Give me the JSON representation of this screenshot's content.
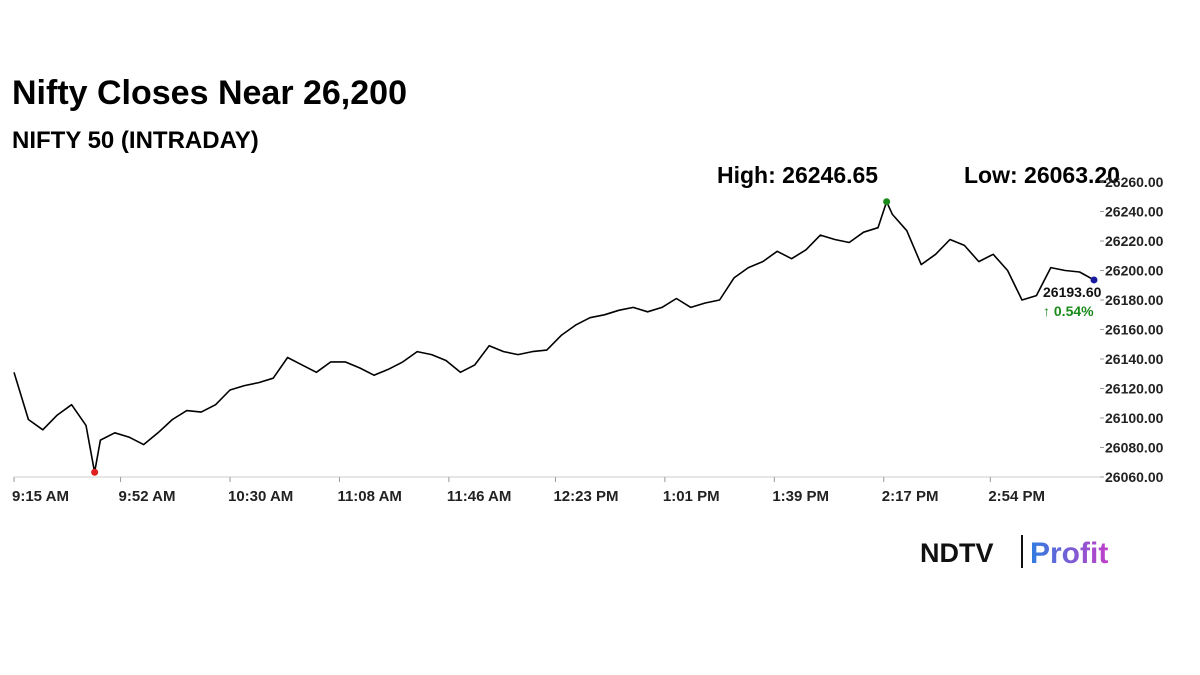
{
  "chart_data": {
    "type": "line",
    "title": "Nifty Closes Near 26,200",
    "subtitle": "NIFTY 50 (INTRADAY)",
    "high_label": "High: 26246.65",
    "low_label": "Low: 26063.20",
    "last_label": "26193.60",
    "change_label": "↑ 0.54%",
    "color": "#000000",
    "high_color": "#1a8a1a",
    "low_color": "#e02020",
    "last_color": "#1a1aa0",
    "x": [
      "09:15",
      "09:20",
      "09:25",
      "09:30",
      "09:35",
      "09:40",
      "09:43",
      "09:45",
      "09:50",
      "09:55",
      "10:00",
      "10:05",
      "10:10",
      "10:15",
      "10:20",
      "10:25",
      "10:30",
      "10:35",
      "10:40",
      "10:45",
      "10:50",
      "10:55",
      "11:00",
      "11:05",
      "11:10",
      "11:15",
      "11:20",
      "11:25",
      "11:30",
      "11:35",
      "11:40",
      "11:45",
      "11:50",
      "11:55",
      "12:00",
      "12:05",
      "12:10",
      "12:15",
      "12:20",
      "12:25",
      "12:30",
      "12:35",
      "12:40",
      "12:45",
      "12:50",
      "12:55",
      "13:00",
      "13:05",
      "13:10",
      "13:15",
      "13:20",
      "13:25",
      "13:30",
      "13:35",
      "13:40",
      "13:45",
      "13:50",
      "13:55",
      "14:00",
      "14:05",
      "14:10",
      "14:15",
      "14:18",
      "14:20",
      "14:25",
      "14:30",
      "14:35",
      "14:40",
      "14:45",
      "14:50",
      "14:55",
      "15:00",
      "15:05",
      "15:10",
      "15:15",
      "15:20",
      "15:25",
      "15:30"
    ],
    "values": [
      26131,
      26099,
      26092,
      26102,
      26109,
      26095,
      26063.2,
      26085,
      26090,
      26087,
      26082,
      26090,
      26099,
      26105,
      26104,
      26109,
      26119,
      26122,
      26124,
      26127,
      26141,
      26136,
      26131,
      26138,
      26138,
      26134,
      26129,
      26133,
      26138,
      26145,
      26143,
      26139,
      26131,
      26136,
      26149,
      26145,
      26143,
      26145,
      26146,
      26156,
      26163,
      26168,
      26170,
      26173,
      26175,
      26172,
      26175,
      26181,
      26175,
      26178,
      26180,
      26195,
      26202,
      26206,
      26213,
      26208,
      26214,
      26224,
      26221,
      26219,
      26226,
      26229,
      26246.65,
      26238,
      26227,
      26204,
      26211,
      26221,
      26217,
      26206,
      26211,
      26200,
      26180,
      26183,
      26202,
      26200,
      26199,
      26193.6
    ],
    "xticks": [
      {
        "value": "09:15",
        "label": "9:15 AM"
      },
      {
        "value": "09:52",
        "label": "9:52 AM"
      },
      {
        "value": "10:30",
        "label": "10:30 AM"
      },
      {
        "value": "11:08",
        "label": "11:08 AM"
      },
      {
        "value": "11:46",
        "label": "11:46 AM"
      },
      {
        "value": "12:23",
        "label": "12:23 PM"
      },
      {
        "value": "13:01",
        "label": "1:01 PM"
      },
      {
        "value": "13:39",
        "label": "1:39 PM"
      },
      {
        "value": "14:17",
        "label": "2:17 PM"
      },
      {
        "value": "14:54",
        "label": "2:54 PM"
      }
    ],
    "xlim": [
      "09:15",
      "15:30"
    ],
    "ylim": [
      26060,
      26260
    ],
    "yticks": [
      {
        "value": 26060,
        "label": "26060.00"
      },
      {
        "value": 26080,
        "label": "26080.00"
      },
      {
        "value": 26100,
        "label": "26100.00"
      },
      {
        "value": 26120,
        "label": "26120.00"
      },
      {
        "value": 26140,
        "label": "26140.00"
      },
      {
        "value": 26160,
        "label": "26160.00"
      },
      {
        "value": 26180,
        "label": "26180.00"
      },
      {
        "value": 26200,
        "label": "26200.00"
      },
      {
        "value": 26220,
        "label": "26220.00"
      },
      {
        "value": 26240,
        "label": "26240.00"
      },
      {
        "value": 26260,
        "label": "26260.00"
      }
    ]
  },
  "brand": {
    "name": "NDTV",
    "product": "Profit"
  }
}
